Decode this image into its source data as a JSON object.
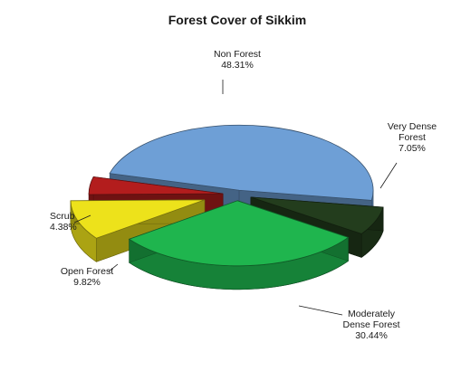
{
  "chart_data": {
    "type": "pie",
    "title": "Forest Cover of Sikkim",
    "slices": [
      {
        "name": "Non Forest",
        "value": 48.31,
        "value_label": "48.31%",
        "color": "#6e9fd6"
      },
      {
        "name": "Very Dense Forest",
        "value": 7.05,
        "value_label": "7.05%",
        "color": "#233d1d"
      },
      {
        "name": "Moderately Dense Forest",
        "value": 30.44,
        "value_label": "30.44%",
        "color": "#1fb54e"
      },
      {
        "name": "Open Forest",
        "value": 9.82,
        "value_label": "9.82%",
        "color": "#ede21b"
      },
      {
        "name": "Scrub",
        "value": 4.38,
        "value_label": "4.38%",
        "color": "#b31d1d"
      }
    ],
    "unit": "%",
    "style": "3d-exploded",
    "legend": "none"
  }
}
